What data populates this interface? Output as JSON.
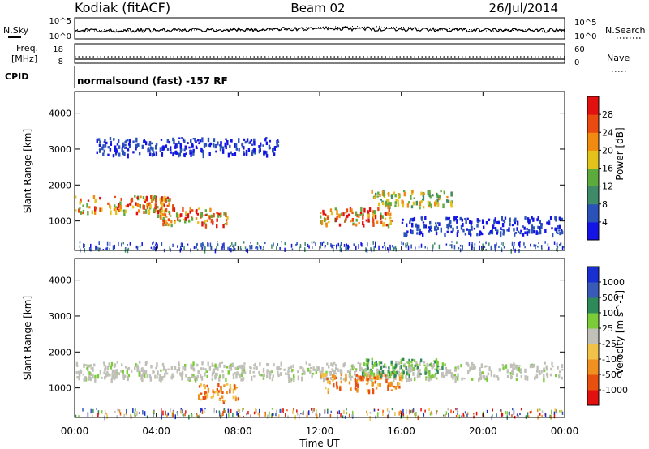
{
  "header": {
    "station": "Kodiak (fitACF)",
    "beam": "Beam 02",
    "date": "26/Jul/2014"
  },
  "summary_panels": {
    "nsky_label": "N.Sky",
    "nsearch_label": "N.Search",
    "noise_ticks": [
      "10^5",
      "10^0"
    ],
    "freq_label_1": "Freq.",
    "freq_label_2": "[MHz]",
    "freq_ticks": [
      "18",
      "8"
    ],
    "nave_label": "Nave",
    "nave_ticks": [
      "60",
      "0"
    ],
    "cpid_label": "CPID",
    "cpid_value": "normalsound (fast) -157 RF"
  },
  "chart_data": [
    {
      "type": "heatmap",
      "title": "",
      "xlabel": "Time UT",
      "ylabel": "Slant Range [km]",
      "x_ticks": [
        "00:00",
        "04:00",
        "08:00",
        "12:00",
        "16:00",
        "20:00",
        "00:00"
      ],
      "y_ticks": [
        "1000",
        "2000",
        "3000",
        "4000"
      ],
      "ylim": [
        180,
        4600
      ],
      "colorbar_label": "Power [dB]",
      "colorbar_ticks": [
        "4",
        "8",
        "12",
        "16",
        "20",
        "24",
        "28"
      ],
      "colorbar_colors": [
        "#1414e6",
        "#2a52b8",
        "#3f8a68",
        "#5cab3c",
        "#e3c21c",
        "#f08a10",
        "#e84a10",
        "#e31010"
      ],
      "echo_bands": [
        {
          "t_start": 0.0,
          "t_end": 4.8,
          "range_km": 1500,
          "level": "high"
        },
        {
          "t_start": 4.0,
          "t_end": 7.5,
          "range_km": 1150,
          "level": "high"
        },
        {
          "t_start": 12.0,
          "t_end": 15.5,
          "range_km": 1150,
          "level": "high"
        },
        {
          "t_start": 14.5,
          "t_end": 18.5,
          "range_km": 1650,
          "level": "medium"
        },
        {
          "t_start": 1.0,
          "t_end": 10.0,
          "range_km": 3100,
          "level": "low"
        },
        {
          "t_start": 16.0,
          "t_end": 24.0,
          "range_km": 900,
          "level": "low"
        }
      ]
    },
    {
      "type": "heatmap",
      "title": "",
      "xlabel": "Time UT",
      "ylabel": "Slant Range [km]",
      "x_ticks": [
        "00:00",
        "04:00",
        "08:00",
        "12:00",
        "16:00",
        "20:00",
        "00:00"
      ],
      "y_ticks": [
        "1000",
        "2000",
        "3000",
        "4000"
      ],
      "ylim": [
        180,
        4600
      ],
      "colorbar_label": "Velocity [m s^-1]",
      "colorbar_ticks": [
        "1000",
        "500",
        "100",
        "25",
        "-25",
        "-100",
        "-500",
        "-1000"
      ],
      "colorbar_colors": [
        "#1a2fd0",
        "#3a5ab8",
        "#2f8a5a",
        "#7ccc3a",
        "#c0c0b8",
        "#f0c24a",
        "#f09020",
        "#e85010",
        "#e31010"
      ],
      "echo_bands": [
        {
          "t_start": 0.0,
          "t_end": 24.0,
          "range_km": 1500,
          "level": "ground_scatter"
        },
        {
          "t_start": 12.0,
          "t_end": 16.0,
          "range_km": 1200,
          "level": "negative"
        },
        {
          "t_start": 6.0,
          "t_end": 8.0,
          "range_km": 900,
          "level": "negative"
        },
        {
          "t_start": 14.0,
          "t_end": 18.0,
          "range_km": 1600,
          "level": "positive"
        }
      ]
    }
  ]
}
